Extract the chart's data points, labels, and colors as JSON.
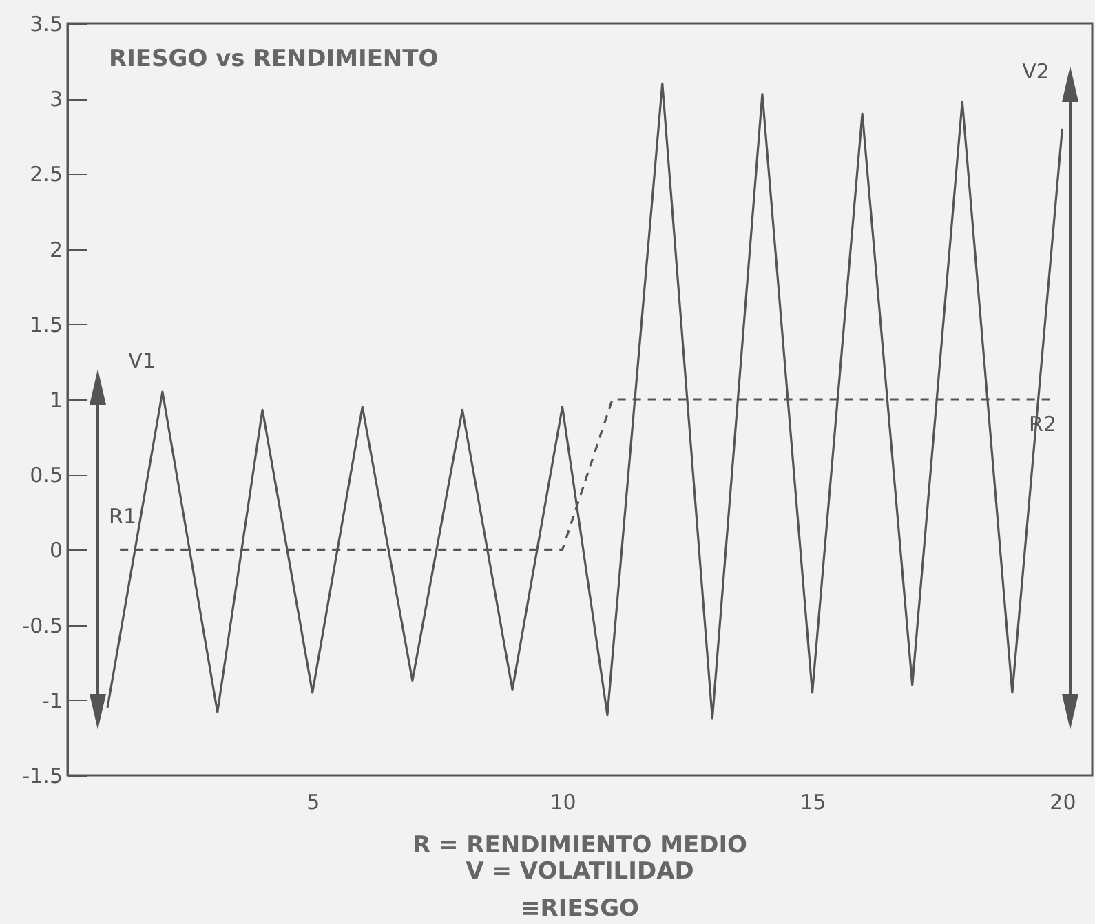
{
  "chart_data": {
    "type": "line",
    "title": "RIESGO vs RENDIMIENTO",
    "series": [
      {
        "color": "#555555",
        "line_style": "solid",
        "x": [
          0.9,
          2,
          3.1,
          4,
          5,
          6,
          7,
          8,
          9,
          10,
          10.9,
          12,
          13,
          14,
          15,
          16,
          17,
          18,
          19,
          20
        ],
        "values": [
          -1.05,
          1.05,
          -1.08,
          0.93,
          -0.95,
          0.95,
          -0.87,
          0.93,
          -0.93,
          0.95,
          -1.1,
          3.1,
          -1.12,
          3.03,
          -0.95,
          2.9,
          -0.9,
          2.98,
          -0.95,
          2.8
        ]
      },
      {
        "color": "#555555",
        "line_style": "dashed",
        "x": [
          1.15,
          10,
          11,
          19.85
        ],
        "values": [
          0,
          0,
          1,
          1
        ]
      }
    ],
    "xlim": [
      0.1,
      20.6
    ],
    "xticks": [
      5,
      10,
      15,
      20
    ],
    "ylim": [
      -1.5,
      3.5
    ],
    "yticks": [
      -1.5,
      -1,
      -0.5,
      0,
      0.5,
      1,
      1.5,
      2,
      2.5,
      3,
      3.5
    ],
    "annotations": [
      "V1",
      "R1",
      "V2",
      "R2",
      "R  = RENDIMIENTO MEDIO",
      "V = VOLATILIDAD",
      "≡RIESGO"
    ]
  }
}
